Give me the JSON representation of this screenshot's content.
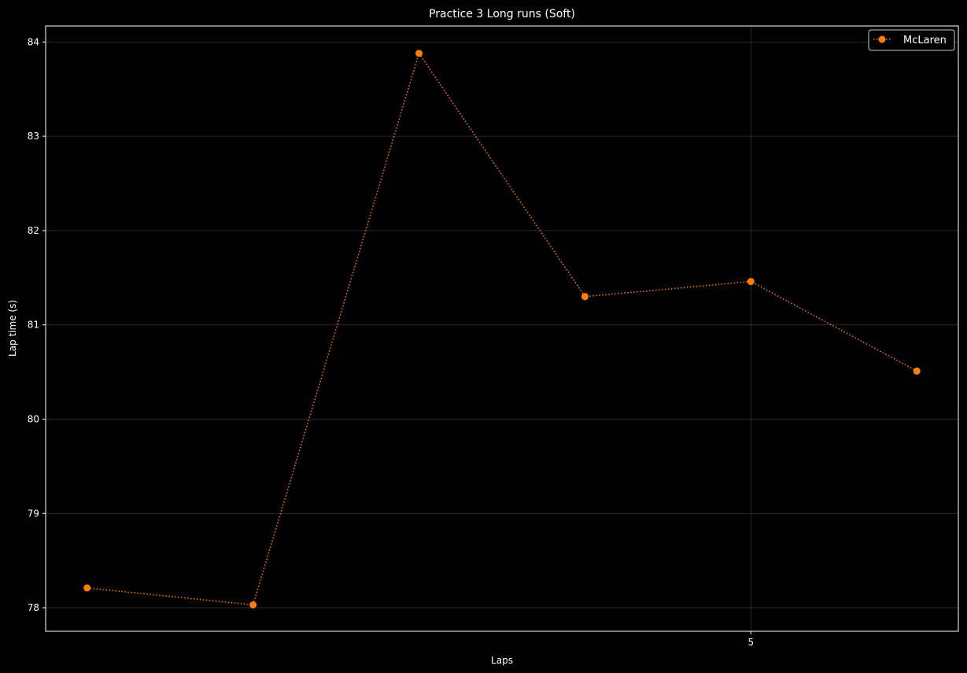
{
  "chart_data": {
    "type": "line",
    "title": "Practice 3 Long runs (Soft)",
    "xlabel": "Laps",
    "ylabel": "Lap time (s)",
    "x": [
      1,
      2,
      3,
      4,
      5,
      6
    ],
    "xlim": [
      0.75,
      6.25
    ],
    "x_ticks": [
      5
    ],
    "ylim": [
      77.75,
      84.17
    ],
    "y_ticks": [
      78,
      79,
      80,
      81,
      82,
      83,
      84
    ],
    "grid": true,
    "legend_position": "top-right",
    "series": [
      {
        "name": "McLaren",
        "color": "#ff8000",
        "line_style": "dotted",
        "marker": "circle",
        "values": [
          78.21,
          78.03,
          83.88,
          81.3,
          81.46,
          80.51
        ]
      }
    ]
  }
}
